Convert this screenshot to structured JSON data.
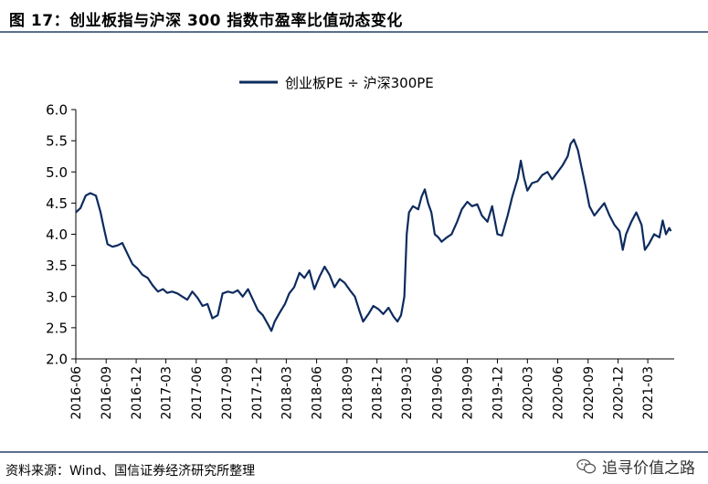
{
  "header": {
    "title": "图 17：创业板指与沪深 300 指数市盈率比值动态变化"
  },
  "footer": {
    "source": "资料来源：Wind、国信证券经济研究所整理",
    "watermark": "追寻价值之路"
  },
  "colors": {
    "series": "#0d2b5e",
    "rule": "#5a6e8c"
  },
  "chart_data": {
    "type": "line",
    "legend_position": "top-center",
    "grid": false,
    "ylim": [
      2.0,
      6.0
    ],
    "yticks": [
      "6.0",
      "5.5",
      "5.0",
      "4.5",
      "4.0",
      "3.5",
      "3.0",
      "2.5",
      "2.0"
    ],
    "xticks": [
      "2016-06",
      "2016-09",
      "2016-12",
      "2017-03",
      "2017-06",
      "2017-09",
      "2017-12",
      "2018-03",
      "2018-06",
      "2018-09",
      "2018-12",
      "2019-03",
      "2019-06",
      "2019-09",
      "2019-12",
      "2020-03",
      "2020-06",
      "2020-09",
      "2020-12",
      "2021-03"
    ],
    "series": [
      {
        "name": "创业板PE ÷ 沪深300PE",
        "points": [
          [
            "2016-06-01",
            4.35
          ],
          [
            "2016-06-15",
            4.42
          ],
          [
            "2016-07-01",
            4.62
          ],
          [
            "2016-07-15",
            4.66
          ],
          [
            "2016-08-01",
            4.62
          ],
          [
            "2016-08-15",
            4.35
          ],
          [
            "2016-08-25",
            4.1
          ],
          [
            "2016-09-05",
            3.84
          ],
          [
            "2016-09-20",
            3.8
          ],
          [
            "2016-10-05",
            3.82
          ],
          [
            "2016-10-20",
            3.86
          ],
          [
            "2016-11-05",
            3.68
          ],
          [
            "2016-11-20",
            3.52
          ],
          [
            "2016-12-05",
            3.45
          ],
          [
            "2016-12-20",
            3.35
          ],
          [
            "2017-01-05",
            3.3
          ],
          [
            "2017-01-20",
            3.18
          ],
          [
            "2017-02-05",
            3.08
          ],
          [
            "2017-02-20",
            3.12
          ],
          [
            "2017-03-05",
            3.06
          ],
          [
            "2017-03-20",
            3.08
          ],
          [
            "2017-04-05",
            3.05
          ],
          [
            "2017-04-20",
            3.0
          ],
          [
            "2017-05-05",
            2.95
          ],
          [
            "2017-05-20",
            3.08
          ],
          [
            "2017-06-05",
            2.98
          ],
          [
            "2017-06-20",
            2.85
          ],
          [
            "2017-07-05",
            2.88
          ],
          [
            "2017-07-20",
            2.65
          ],
          [
            "2017-08-05",
            2.7
          ],
          [
            "2017-08-20",
            3.05
          ],
          [
            "2017-09-05",
            3.08
          ],
          [
            "2017-09-20",
            3.06
          ],
          [
            "2017-10-05",
            3.1
          ],
          [
            "2017-10-20",
            3.0
          ],
          [
            "2017-11-05",
            3.12
          ],
          [
            "2017-11-20",
            2.95
          ],
          [
            "2017-12-05",
            2.78
          ],
          [
            "2017-12-20",
            2.7
          ],
          [
            "2018-01-05",
            2.55
          ],
          [
            "2018-01-15",
            2.45
          ],
          [
            "2018-01-25",
            2.6
          ],
          [
            "2018-02-10",
            2.75
          ],
          [
            "2018-02-25",
            2.88
          ],
          [
            "2018-03-10",
            3.05
          ],
          [
            "2018-03-25",
            3.15
          ],
          [
            "2018-04-10",
            3.38
          ],
          [
            "2018-04-25",
            3.3
          ],
          [
            "2018-05-10",
            3.42
          ],
          [
            "2018-05-25",
            3.12
          ],
          [
            "2018-06-10",
            3.32
          ],
          [
            "2018-06-25",
            3.48
          ],
          [
            "2018-07-10",
            3.35
          ],
          [
            "2018-07-25",
            3.15
          ],
          [
            "2018-08-10",
            3.28
          ],
          [
            "2018-08-25",
            3.22
          ],
          [
            "2018-09-10",
            3.1
          ],
          [
            "2018-09-25",
            3.0
          ],
          [
            "2018-10-10",
            2.75
          ],
          [
            "2018-10-20",
            2.6
          ],
          [
            "2018-11-05",
            2.72
          ],
          [
            "2018-11-20",
            2.85
          ],
          [
            "2018-12-05",
            2.8
          ],
          [
            "2018-12-20",
            2.72
          ],
          [
            "2019-01-05",
            2.82
          ],
          [
            "2019-01-20",
            2.68
          ],
          [
            "2019-02-01",
            2.6
          ],
          [
            "2019-02-12",
            2.7
          ],
          [
            "2019-02-22",
            3.0
          ],
          [
            "2019-03-01",
            4.0
          ],
          [
            "2019-03-08",
            4.35
          ],
          [
            "2019-03-20",
            4.45
          ],
          [
            "2019-04-05",
            4.4
          ],
          [
            "2019-04-15",
            4.6
          ],
          [
            "2019-04-25",
            4.72
          ],
          [
            "2019-05-05",
            4.5
          ],
          [
            "2019-05-15",
            4.35
          ],
          [
            "2019-05-25",
            4.0
          ],
          [
            "2019-06-05",
            3.95
          ],
          [
            "2019-06-15",
            3.88
          ],
          [
            "2019-07-01",
            3.95
          ],
          [
            "2019-07-15",
            4.0
          ],
          [
            "2019-08-01",
            4.2
          ],
          [
            "2019-08-15",
            4.4
          ],
          [
            "2019-09-01",
            4.52
          ],
          [
            "2019-09-15",
            4.45
          ],
          [
            "2019-10-01",
            4.48
          ],
          [
            "2019-10-15",
            4.3
          ],
          [
            "2019-11-01",
            4.2
          ],
          [
            "2019-11-15",
            4.45
          ],
          [
            "2019-12-01",
            4.0
          ],
          [
            "2019-12-15",
            3.98
          ],
          [
            "2020-01-01",
            4.3
          ],
          [
            "2020-01-15",
            4.6
          ],
          [
            "2020-02-01",
            4.9
          ],
          [
            "2020-02-10",
            5.18
          ],
          [
            "2020-02-20",
            4.9
          ],
          [
            "2020-03-01",
            4.7
          ],
          [
            "2020-03-15",
            4.82
          ],
          [
            "2020-04-01",
            4.85
          ],
          [
            "2020-04-15",
            4.95
          ],
          [
            "2020-05-01",
            5.0
          ],
          [
            "2020-05-15",
            4.88
          ],
          [
            "2020-06-01",
            5.0
          ],
          [
            "2020-06-15",
            5.1
          ],
          [
            "2020-07-01",
            5.25
          ],
          [
            "2020-07-10",
            5.45
          ],
          [
            "2020-07-20",
            5.52
          ],
          [
            "2020-08-01",
            5.35
          ],
          [
            "2020-08-15",
            5.0
          ],
          [
            "2020-08-25",
            4.75
          ],
          [
            "2020-09-05",
            4.45
          ],
          [
            "2020-09-20",
            4.3
          ],
          [
            "2020-10-05",
            4.4
          ],
          [
            "2020-10-20",
            4.5
          ],
          [
            "2020-11-05",
            4.3
          ],
          [
            "2020-11-20",
            4.15
          ],
          [
            "2020-12-05",
            4.05
          ],
          [
            "2020-12-15",
            3.75
          ],
          [
            "2020-12-25",
            4.0
          ],
          [
            "2021-01-10",
            4.2
          ],
          [
            "2021-01-25",
            4.35
          ],
          [
            "2021-02-10",
            4.15
          ],
          [
            "2021-02-20",
            3.75
          ],
          [
            "2021-03-05",
            3.85
          ],
          [
            "2021-03-20",
            4.0
          ],
          [
            "2021-04-05",
            3.95
          ],
          [
            "2021-04-15",
            4.22
          ],
          [
            "2021-04-25",
            4.0
          ],
          [
            "2021-05-05",
            4.1
          ],
          [
            "2021-05-10",
            4.05
          ]
        ]
      }
    ]
  }
}
